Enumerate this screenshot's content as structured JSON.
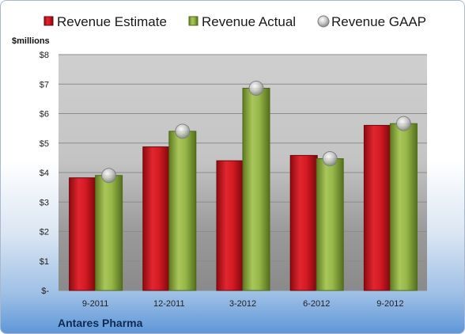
{
  "chart_data": {
    "type": "bar",
    "title": "",
    "ylabel": "$millions",
    "xlabel": "",
    "ylim": [
      0,
      8
    ],
    "ytick_labels": [
      "$-",
      "$1",
      "$2",
      "$3",
      "$4",
      "$5",
      "$6",
      "$7",
      "$8"
    ],
    "categories": [
      "9-2011",
      "12-2011",
      "3-2012",
      "6-2012",
      "9-2012"
    ],
    "series": [
      {
        "name": "Revenue Estimate",
        "kind": "bar",
        "color": "#c0141c",
        "values": [
          3.82,
          4.87,
          4.4,
          4.58,
          5.6
        ]
      },
      {
        "name": "Revenue Actual",
        "kind": "bar",
        "color": "#8fae3f",
        "values": [
          3.9,
          5.4,
          6.86,
          4.47,
          5.66
        ]
      },
      {
        "name": "Revenue GAAP",
        "kind": "marker",
        "color": "#b8b8b8",
        "values": [
          3.9,
          5.4,
          6.86,
          4.47,
          5.66
        ]
      }
    ],
    "legend_position": "top",
    "grid": true,
    "company": "Antares Pharma"
  }
}
